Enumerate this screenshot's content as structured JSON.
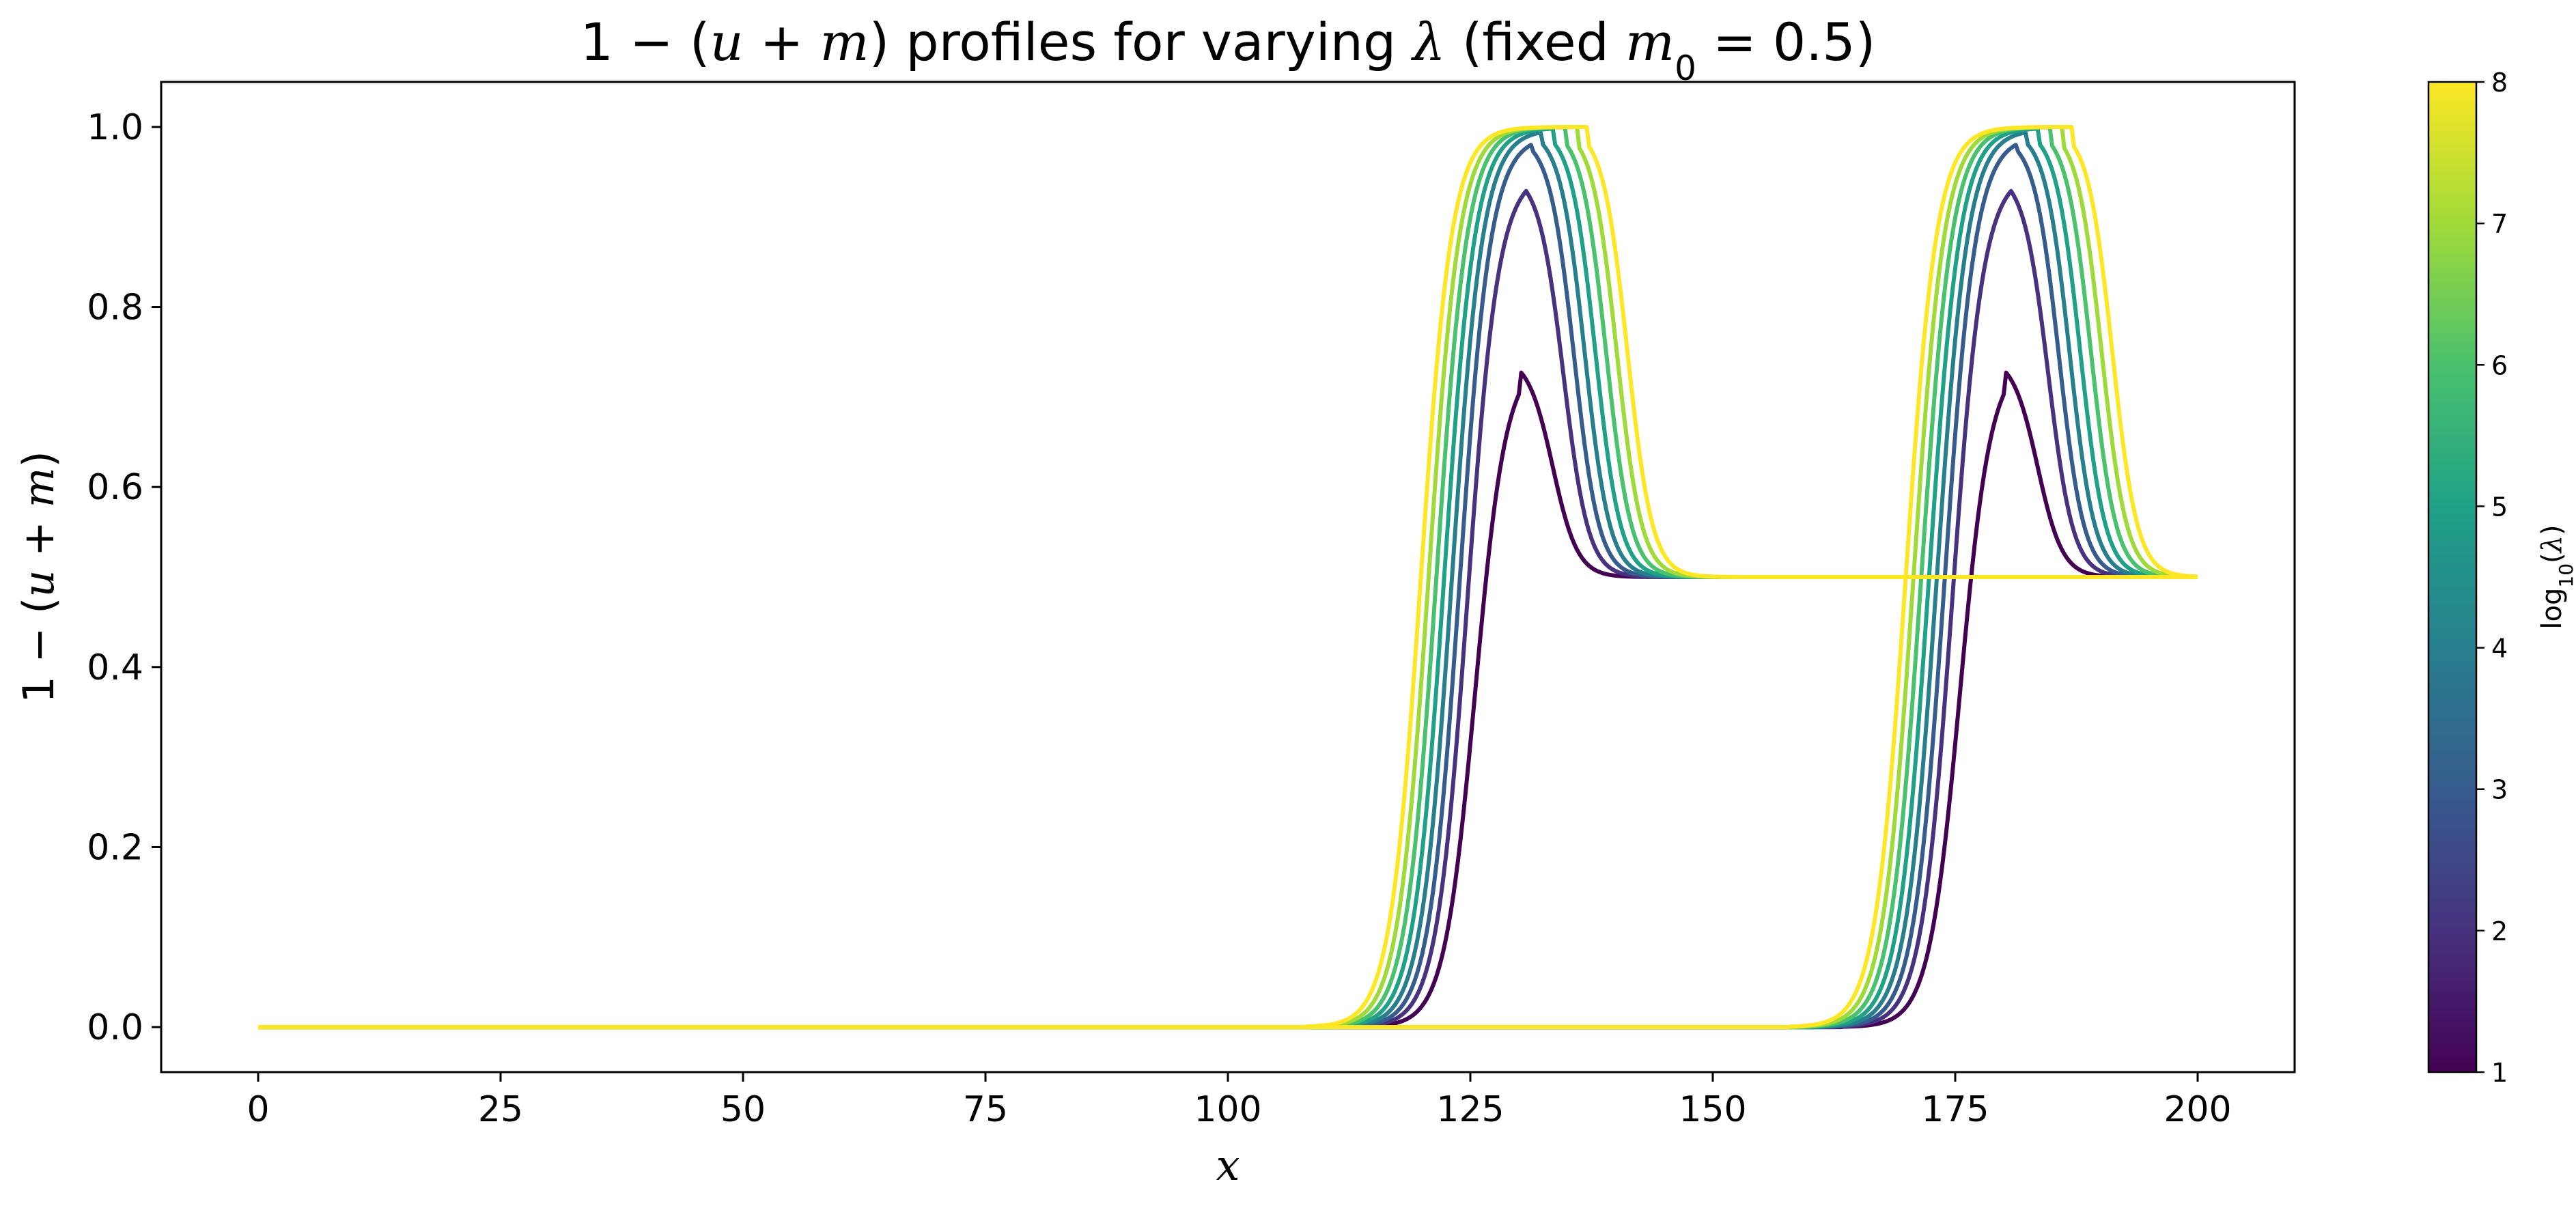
{
  "chart_data": {
    "type": "line",
    "title_parts": [
      "1 − (",
      "u",
      " + ",
      "m",
      ") profiles for varying ",
      "λ",
      " (fixed ",
      "m",
      "0",
      " = 0.5)"
    ],
    "xlabel": "x",
    "ylabel_parts": [
      "1 − (",
      "u",
      " + ",
      "m",
      ")"
    ],
    "xlim": [
      -10,
      210
    ],
    "ylim": [
      -0.05,
      1.05
    ],
    "xticks": [
      0,
      25,
      50,
      75,
      100,
      125,
      150,
      175,
      200
    ],
    "xtick_labels": [
      "0",
      "25",
      "50",
      "75",
      "100",
      "125",
      "150",
      "175",
      "200"
    ],
    "yticks": [
      0.0,
      0.2,
      0.4,
      0.6,
      0.8,
      1.0
    ],
    "ytick_labels": [
      "0.0",
      "0.2",
      "0.4",
      "0.6",
      "0.8",
      "1.0"
    ],
    "grid": false,
    "colorbar": {
      "label_parts": [
        "log",
        "10",
        "(",
        "λ",
        ")"
      ],
      "range": [
        1,
        8
      ],
      "ticks": [
        1,
        2,
        3,
        4,
        5,
        6,
        7,
        8
      ],
      "tick_labels": [
        "1",
        "2",
        "3",
        "4",
        "5",
        "6",
        "7",
        "8"
      ],
      "colormap": "viridis",
      "colors": [
        "#440154",
        "#46327e",
        "#365c8d",
        "#277f8e",
        "#1fa187",
        "#4ac16d",
        "#a0da39",
        "#fde725"
      ]
    },
    "series": [
      {
        "log10_lambda": 1,
        "color": "#440154",
        "rise_x": [
          125.5,
          175.5
        ],
        "peak_x": [
          130.0,
          180.0
        ],
        "peak": 0.745,
        "fall_x": [
          133.5,
          183.5
        ]
      },
      {
        "log10_lambda": 2,
        "color": "#46327e",
        "rise_x": [
          124.7,
          174.7
        ],
        "peak_x": [
          130.6,
          180.6
        ],
        "peak": 0.95,
        "fall_x": [
          134.6,
          184.6
        ]
      },
      {
        "log10_lambda": 3,
        "color": "#365c8d",
        "rise_x": [
          123.9,
          173.9
        ],
        "peak_x": [
          131.4,
          181.4
        ],
        "peak": 0.99,
        "fall_x": [
          135.7,
          185.7
        ]
      },
      {
        "log10_lambda": 4,
        "color": "#277f8e",
        "rise_x": [
          123.1,
          173.1
        ],
        "peak_x": [
          132.4,
          182.4
        ],
        "peak": 0.997,
        "fall_x": [
          136.8,
          186.8
        ]
      },
      {
        "log10_lambda": 5,
        "color": "#1fa187",
        "rise_x": [
          122.3,
          172.3
        ],
        "peak_x": [
          133.6,
          183.6
        ],
        "peak": 0.999,
        "fall_x": [
          137.9,
          187.9
        ]
      },
      {
        "log10_lambda": 6,
        "color": "#4ac16d",
        "rise_x": [
          121.5,
          171.5
        ],
        "peak_x": [
          134.8,
          184.8
        ],
        "peak": 1.0,
        "fall_x": [
          139.0,
          189.0
        ]
      },
      {
        "log10_lambda": 7,
        "color": "#a0da39",
        "rise_x": [
          120.7,
          170.7
        ],
        "peak_x": [
          136.0,
          186.0
        ],
        "peak": 1.0,
        "fall_x": [
          140.1,
          190.1
        ]
      },
      {
        "log10_lambda": 8,
        "color": "#fde725",
        "rise_x": [
          119.9,
          169.9
        ],
        "peak_x": [
          137.2,
          187.2
        ],
        "peak": 1.0,
        "fall_x": [
          141.2,
          191.2
        ]
      }
    ]
  }
}
